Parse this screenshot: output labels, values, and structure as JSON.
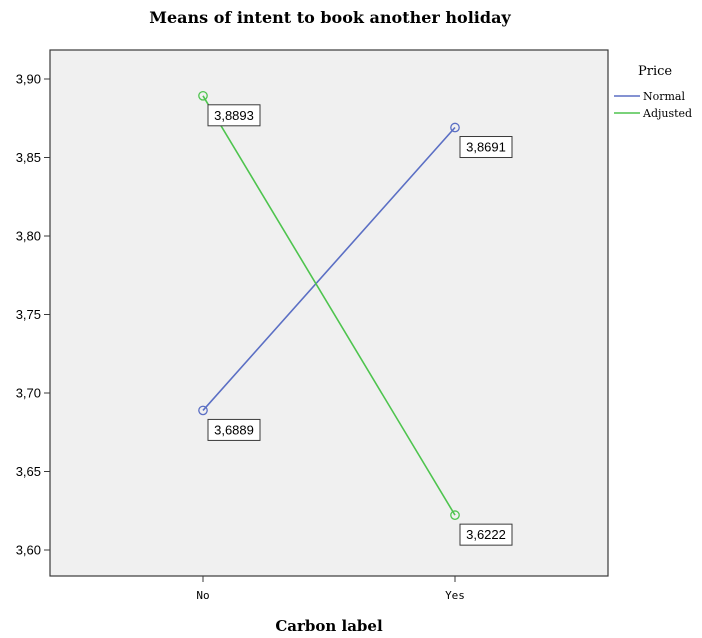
{
  "chart_data": {
    "type": "line",
    "title": "Means of intent to book another holiday",
    "xlabel": "Carbon label",
    "ylabel": "",
    "categories": [
      "No",
      "Yes"
    ],
    "ylim": [
      3.58,
      3.92
    ],
    "yticks": [
      3.6,
      3.65,
      3.7,
      3.75,
      3.8,
      3.85,
      3.9
    ],
    "ytick_labels": [
      "3,60",
      "3,65",
      "3,70",
      "3,75",
      "3,80",
      "3,85",
      "3,90"
    ],
    "grid": false,
    "legend": {
      "title": "Price",
      "position": "right-top"
    },
    "series": [
      {
        "name": "Normal",
        "color": "#5b6fc4",
        "values": [
          3.6889,
          3.8691
        ],
        "labels": [
          "3,6889",
          "3,8691"
        ]
      },
      {
        "name": "Adjusted",
        "color": "#4ec44e",
        "values": [
          3.8893,
          3.6222
        ],
        "labels": [
          "3,8893",
          "3,6222"
        ]
      }
    ],
    "plot_background": "#f0f0f0"
  }
}
